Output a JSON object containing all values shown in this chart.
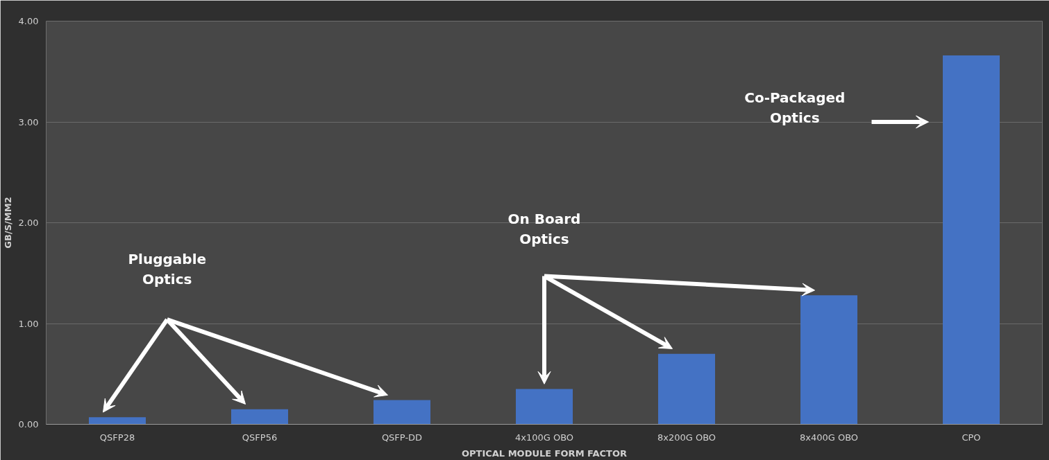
{
  "chart_data": {
    "type": "bar",
    "xlabel": "OPTICAL MODULE FORM FACTOR",
    "ylabel": "GB/S/MM2",
    "categories": [
      "QSFP28",
      "QSFP56",
      "QSFP-DD",
      "4x100G OBO",
      "8x200G OBO",
      "8x400G OBO",
      "CPO"
    ],
    "values": [
      0.07,
      0.15,
      0.24,
      0.35,
      0.7,
      1.28,
      3.66
    ],
    "color": "#4472c4",
    "ylim": [
      0,
      4
    ],
    "yticks": [
      {
        "value": 0,
        "label": "0.00"
      },
      {
        "value": 1,
        "label": "1.00"
      },
      {
        "value": 2,
        "label": "2.00"
      },
      {
        "value": 3,
        "label": "3.00"
      },
      {
        "value": 4,
        "label": "4.00"
      }
    ],
    "grid": "y",
    "annotations": [
      "Pluggable\nOptics",
      "On Board\nOptics",
      "Co-Packaged\nOptics"
    ]
  }
}
